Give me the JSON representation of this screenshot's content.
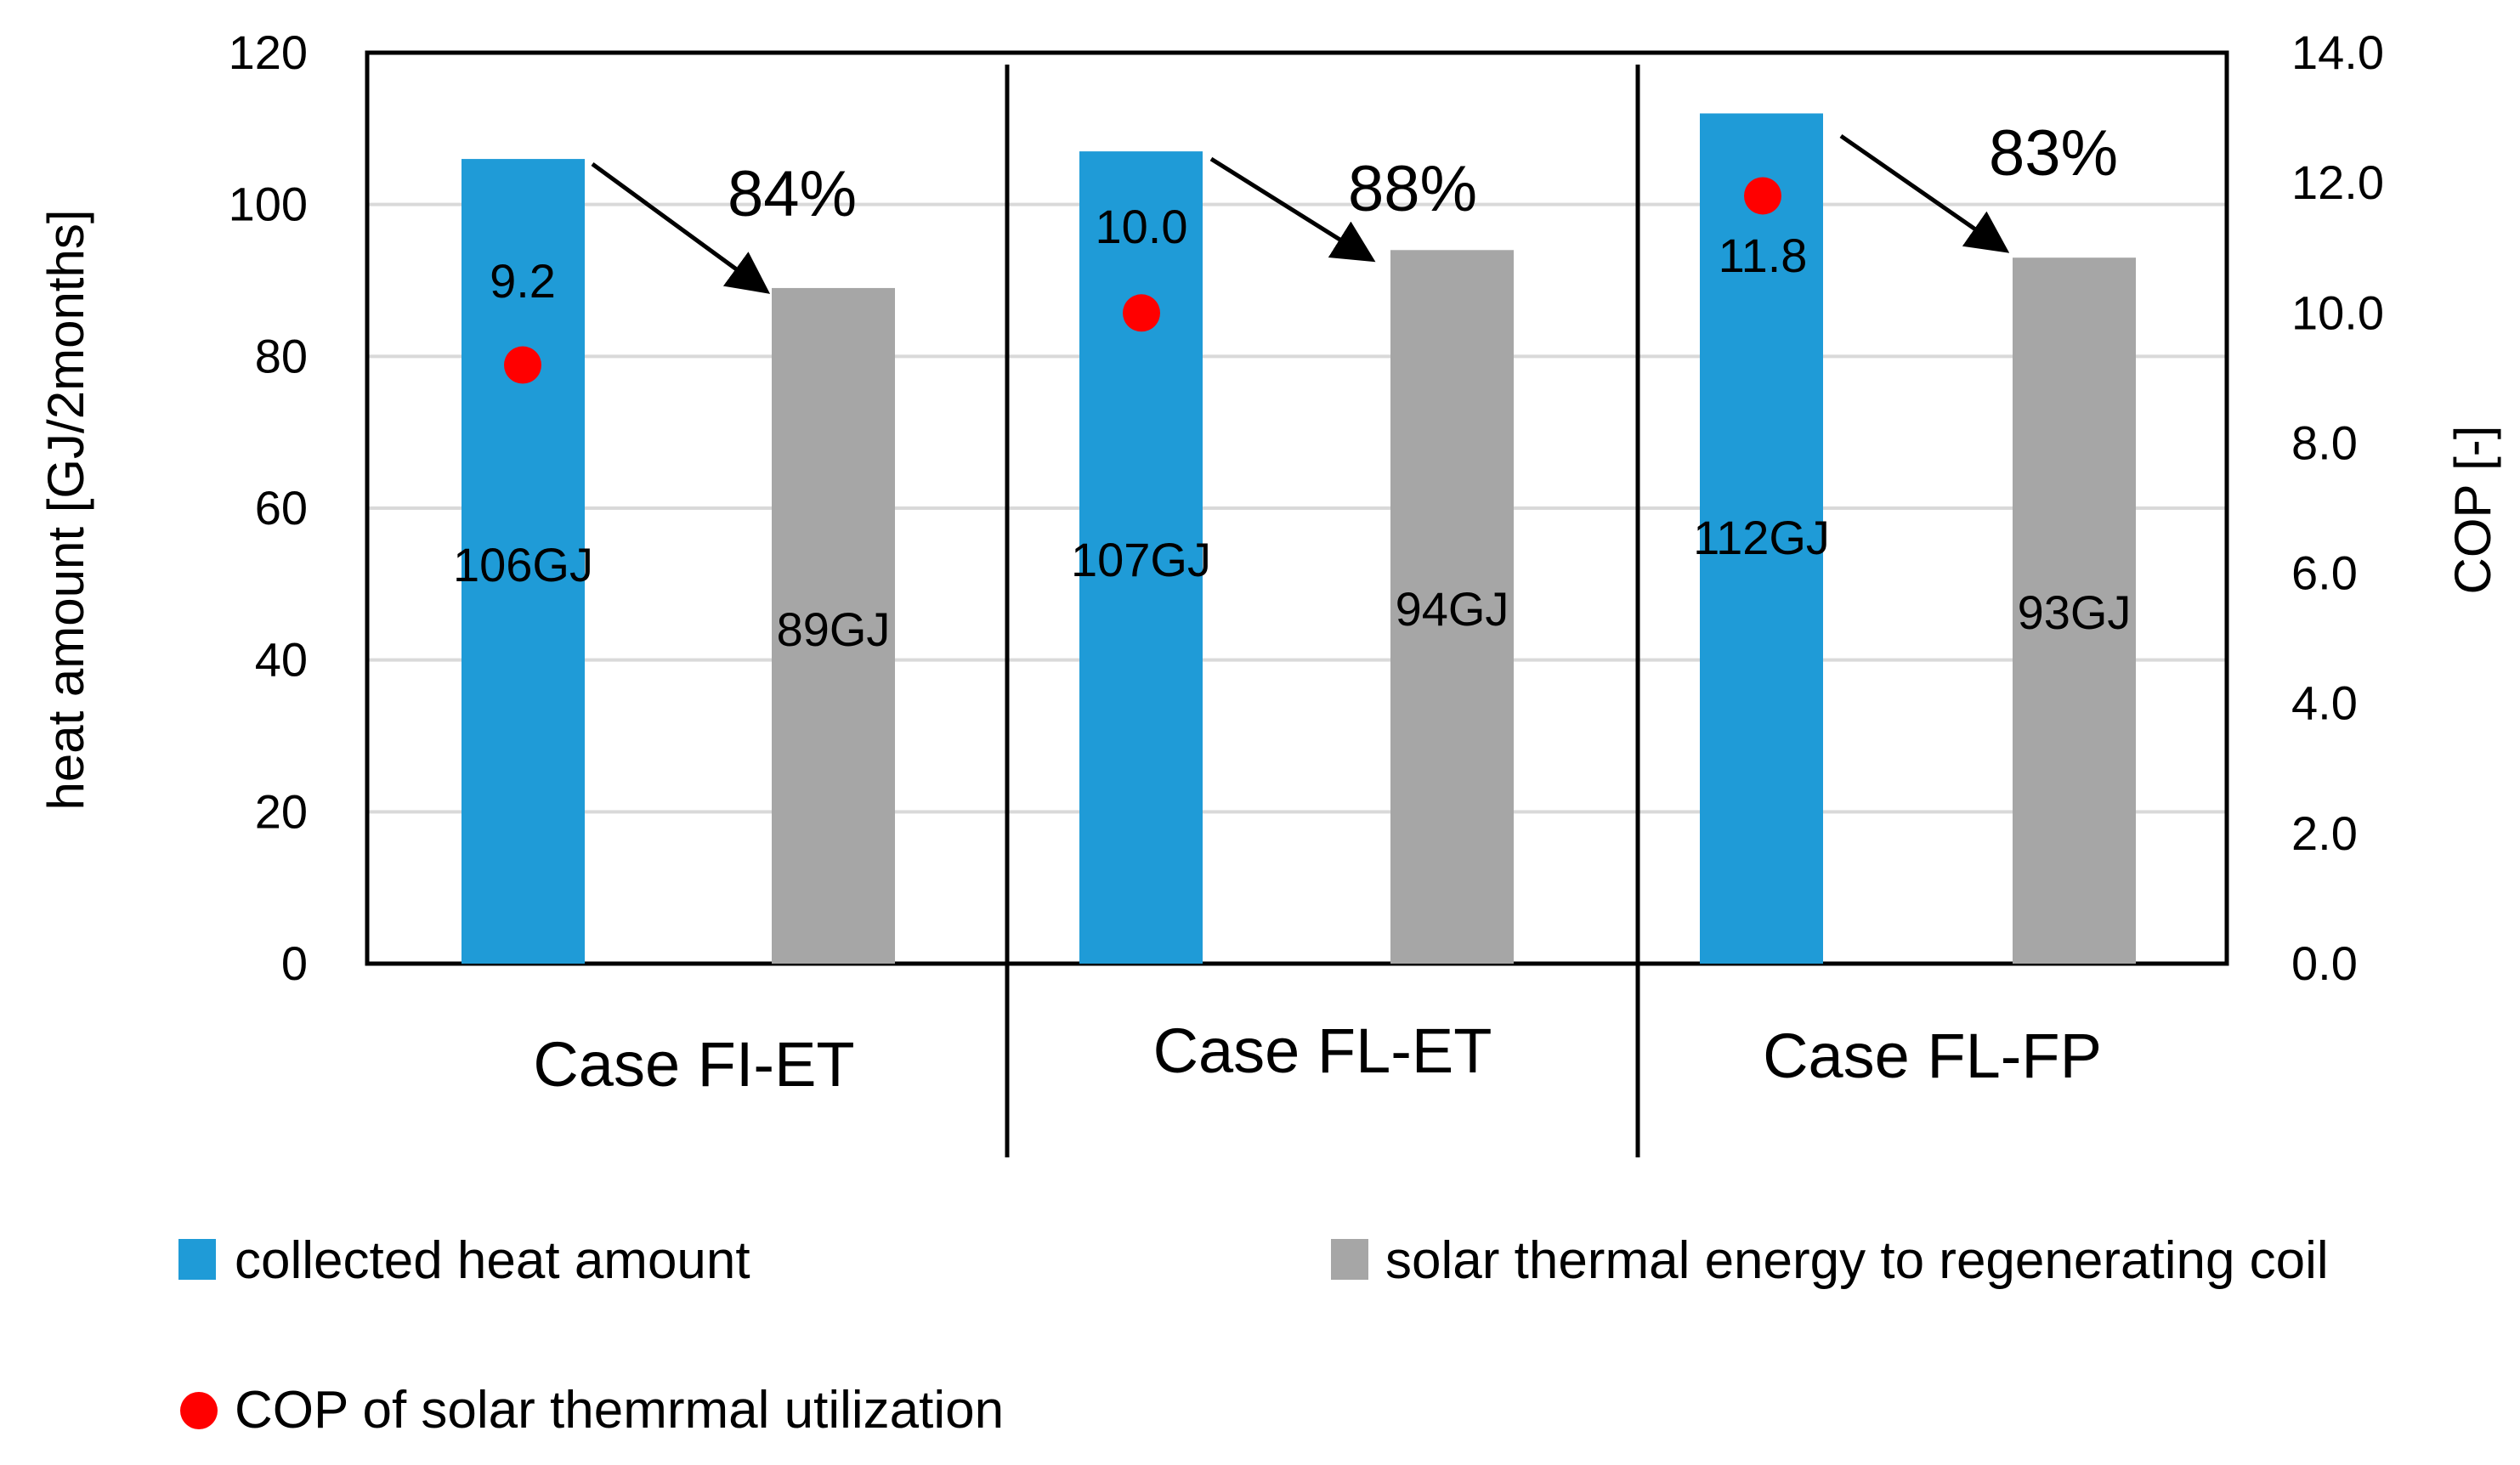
{
  "chart_data": {
    "type": "bar",
    "categories": [
      "Case FI-ET",
      "Case FL-ET",
      "Case FL-FP"
    ],
    "series": [
      {
        "name": "collected heat amount",
        "values": [
          106,
          107,
          112
        ],
        "color": "#1f9bd7",
        "axis": "left"
      },
      {
        "name": "solar thermal energy to regenerating coil",
        "values": [
          89,
          94,
          93
        ],
        "color": "#a6a6a6",
        "axis": "left"
      },
      {
        "name": "COP of solar themrmal utilization",
        "type": "scatter",
        "values": [
          9.2,
          10.0,
          11.8
        ],
        "color": "#ff0000",
        "axis": "right"
      }
    ],
    "bar_labels": {
      "collected": [
        "106GJ",
        "107GJ",
        "112GJ"
      ],
      "regen": [
        "89GJ",
        "94GJ",
        "93GJ"
      ]
    },
    "cop_labels": [
      "9.2",
      "10.0",
      "11.8"
    ],
    "ratios": [
      "84%",
      "88%",
      "83%"
    ],
    "ylabel": "heat amount [GJ/2months]",
    "y2label": "COP [-]",
    "ylim": [
      0,
      120
    ],
    "y2lim": [
      0,
      14
    ],
    "yticks": [
      "0",
      "20",
      "40",
      "60",
      "80",
      "100",
      "120"
    ],
    "y2ticks": [
      "0.0",
      "2.0",
      "4.0",
      "6.0",
      "8.0",
      "10.0",
      "12.0",
      "14.0"
    ],
    "grid": true,
    "legend": {
      "position": "bottom",
      "items": [
        "collected heat amount",
        "solar thermal energy to regenerating coil",
        "COP of solar themrmal utilization"
      ]
    }
  }
}
